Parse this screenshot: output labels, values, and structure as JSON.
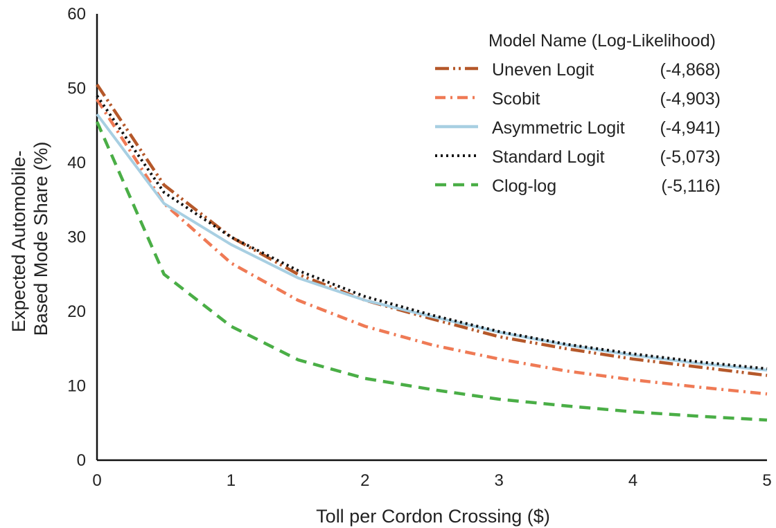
{
  "chart_data": {
    "type": "line",
    "title": "",
    "xlabel": "Toll per Cordon Crossing ($)",
    "ylabel_lines": [
      "Expected Automobile-",
      "Based Mode Share (%)"
    ],
    "xlim": [
      0,
      5
    ],
    "ylim": [
      0,
      60
    ],
    "xticks": [
      "0",
      "1",
      "2",
      "3",
      "4",
      "5"
    ],
    "yticks": [
      "0",
      "10",
      "20",
      "30",
      "40",
      "50",
      "60"
    ],
    "grid": false,
    "legend": {
      "title": "Model Name (Log-Likelihood)",
      "position": "top-right"
    },
    "x": [
      0,
      0.5,
      1,
      1.5,
      2,
      2.5,
      3,
      3.5,
      4,
      4.5,
      5
    ],
    "series": [
      {
        "name": "Uneven Logit",
        "loglik": "(-4,868)",
        "color": "#b5582a",
        "dash": "dash-dot-dot",
        "values": [
          50.5,
          37.0,
          30.0,
          25.0,
          21.5,
          19.0,
          16.6,
          15.0,
          13.6,
          12.5,
          11.4
        ]
      },
      {
        "name": "Scobit",
        "loglik": "(-4,903)",
        "color": "#ef7a55",
        "dash": "dash-dot",
        "values": [
          48.5,
          34.5,
          26.5,
          21.5,
          18.0,
          15.5,
          13.6,
          12.0,
          10.8,
          9.8,
          8.9
        ]
      },
      {
        "name": "Asymmetric Logit",
        "loglik": "(-4,941)",
        "color": "#a8cfe2",
        "dash": "solid",
        "values": [
          46.5,
          34.5,
          29.0,
          24.5,
          21.5,
          19.3,
          17.2,
          15.5,
          14.1,
          13.0,
          12.1
        ]
      },
      {
        "name": "Standard Logit",
        "loglik": "(-5,073)",
        "color": "#111111",
        "dash": "dotted",
        "values": [
          49.0,
          36.0,
          30.0,
          25.5,
          22.0,
          19.5,
          17.3,
          15.6,
          14.3,
          13.2,
          12.3
        ]
      },
      {
        "name": "Clog-log",
        "loglik": "(-5,116)",
        "color": "#4aae46",
        "dash": "dashed",
        "values": [
          45.5,
          25.0,
          18.0,
          13.5,
          11.0,
          9.5,
          8.2,
          7.3,
          6.5,
          5.9,
          5.4
        ]
      }
    ]
  }
}
